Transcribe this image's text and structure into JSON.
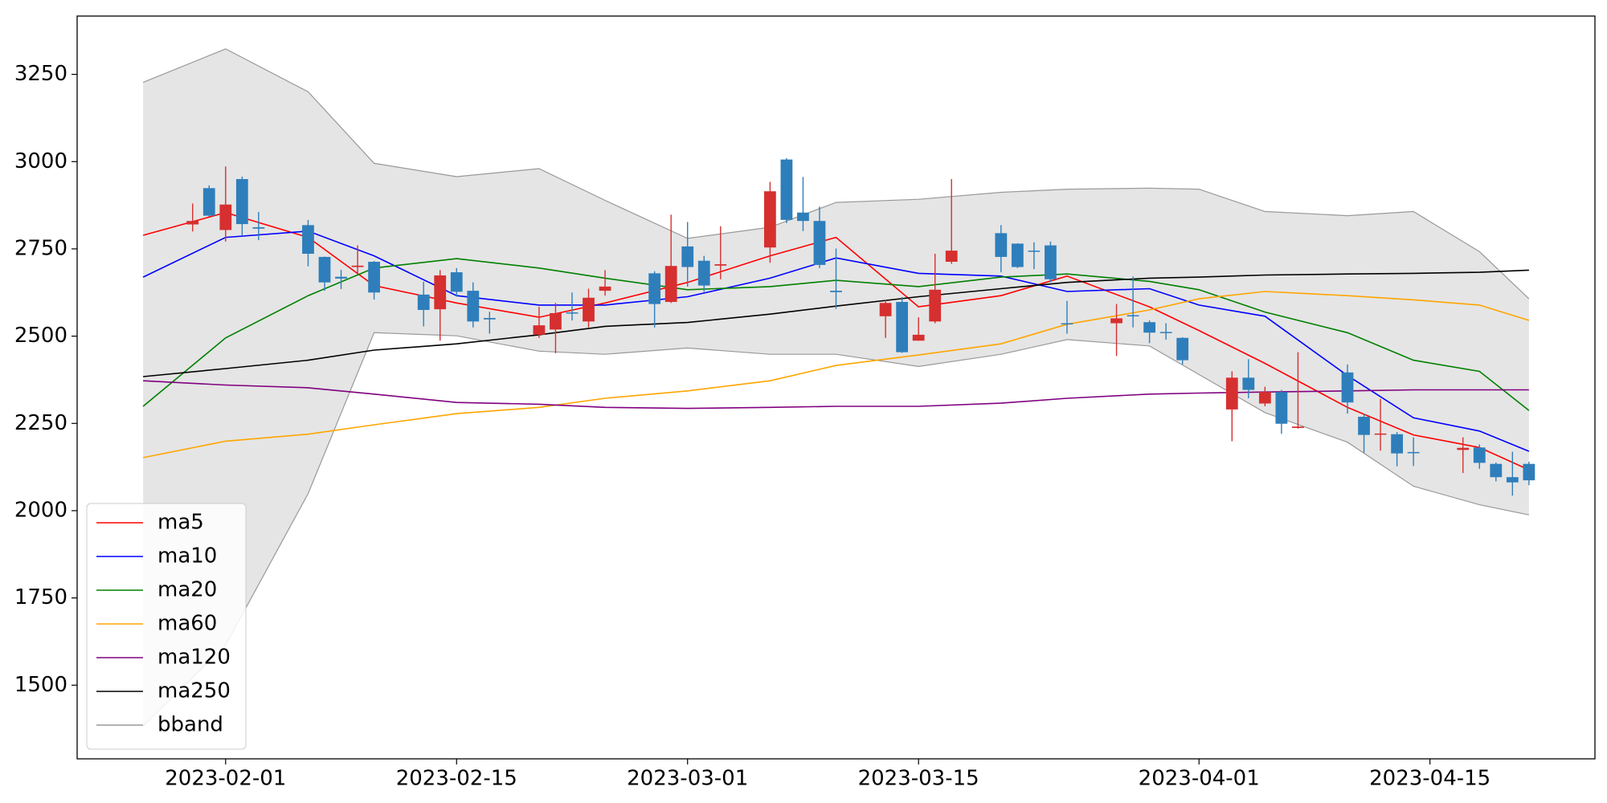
{
  "chart_data": {
    "type": "candlestick",
    "x": [
      "2023-01-30",
      "2023-01-31",
      "2023-02-01",
      "2023-02-02",
      "2023-02-03",
      "2023-02-06",
      "2023-02-07",
      "2023-02-08",
      "2023-02-09",
      "2023-02-10",
      "2023-02-13",
      "2023-02-14",
      "2023-02-15",
      "2023-02-16",
      "2023-02-17",
      "2023-02-20",
      "2023-02-21",
      "2023-02-22",
      "2023-02-23",
      "2023-02-24",
      "2023-02-27",
      "2023-02-28",
      "2023-03-01",
      "2023-03-02",
      "2023-03-03",
      "2023-03-06",
      "2023-03-07",
      "2023-03-08",
      "2023-03-09",
      "2023-03-10",
      "2023-03-13",
      "2023-03-14",
      "2023-03-15",
      "2023-03-16",
      "2023-03-17",
      "2023-03-20",
      "2023-03-21",
      "2023-03-22",
      "2023-03-23",
      "2023-03-24",
      "2023-03-27",
      "2023-03-28",
      "2023-03-29",
      "2023-03-30",
      "2023-03-31",
      "2023-04-03",
      "2023-04-04",
      "2023-04-05",
      "2023-04-06",
      "2023-04-07",
      "2023-04-10",
      "2023-04-11",
      "2023-04-12",
      "2023-04-13",
      "2023-04-14",
      "2023-04-17",
      "2023-04-18",
      "2023-04-19",
      "2023-04-20",
      "2023-04-21"
    ],
    "open": [
      2820,
      2924,
      2804,
      2950,
      2812,
      2818,
      2727,
      2670,
      2698,
      2713,
      2619,
      2577,
      2683,
      2630,
      2552,
      2504,
      2519,
      2568,
      2542,
      2630,
      2680,
      2598,
      2757,
      2716,
      2702,
      2754,
      3006,
      2854,
      2830,
      2630,
      2557,
      2598,
      2487,
      2542,
      2713,
      2795,
      2765,
      2745,
      2760,
      2537,
      2537,
      2560,
      2540,
      2512,
      2495,
      2290,
      2381,
      2307,
      2340,
      2237,
      2396,
      2269,
      2218,
      2219,
      2168,
      2174,
      2181,
      2134,
      2096,
      2134
    ],
    "high": [
      2880,
      2932,
      2986,
      2957,
      2856,
      2833,
      2728,
      2690,
      2760,
      2715,
      2656,
      2689,
      2695,
      2654,
      2570,
      2584,
      2595,
      2625,
      2636,
      2689,
      2686,
      2848,
      2827,
      2730,
      2815,
      2942,
      3010,
      2956,
      2871,
      2751,
      2604,
      2612,
      2554,
      2736,
      2950,
      2818,
      2766,
      2769,
      2771,
      2601,
      2592,
      2671,
      2545,
      2537,
      2497,
      2399,
      2434,
      2355,
      2346,
      2454,
      2419,
      2278,
      2320,
      2225,
      2210,
      2210,
      2190,
      2138,
      2169,
      2140
    ],
    "low": [
      2800,
      2843,
      2771,
      2789,
      2775,
      2700,
      2630,
      2635,
      2677,
      2605,
      2528,
      2487,
      2613,
      2525,
      2507,
      2495,
      2451,
      2545,
      2525,
      2616,
      2525,
      2595,
      2642,
      2627,
      2663,
      2710,
      2824,
      2801,
      2695,
      2578,
      2495,
      2452,
      2487,
      2537,
      2707,
      2683,
      2695,
      2692,
      2654,
      2507,
      2443,
      2525,
      2480,
      2490,
      2419,
      2199,
      2322,
      2299,
      2220,
      2235,
      2278,
      2166,
      2172,
      2127,
      2128,
      2108,
      2120,
      2084,
      2043,
      2073
    ],
    "close": [
      2830,
      2845,
      2877,
      2821,
      2808,
      2736,
      2654,
      2665,
      2702,
      2625,
      2575,
      2674,
      2627,
      2542,
      2548,
      2531,
      2566,
      2565,
      2610,
      2642,
      2592,
      2701,
      2698,
      2645,
      2706,
      2915,
      2833,
      2830,
      2704,
      2626,
      2595,
      2454,
      2504,
      2633,
      2745,
      2727,
      2698,
      2742,
      2663,
      2535,
      2551,
      2557,
      2510,
      2509,
      2431,
      2381,
      2346,
      2340,
      2249,
      2241,
      2310,
      2217,
      2221,
      2164,
      2165,
      2180,
      2137,
      2096,
      2081,
      2087
    ],
    "up_color": "#d62f2f",
    "down_color": "#2e7ebb",
    "overlays": {
      "x": [
        "2023-01-27",
        "2023-02-01",
        "2023-02-06",
        "2023-02-10",
        "2023-02-15",
        "2023-02-20",
        "2023-02-24",
        "2023-03-01",
        "2023-03-06",
        "2023-03-10",
        "2023-03-15",
        "2023-03-20",
        "2023-03-24",
        "2023-03-29",
        "2023-04-01",
        "2023-04-05",
        "2023-04-10",
        "2023-04-14",
        "2023-04-18",
        "2023-04-21"
      ],
      "series": [
        {
          "name": "ma5",
          "color": "#ff0000",
          "values": [
            2789,
            2854,
            2783,
            2645,
            2595,
            2554,
            2595,
            2654,
            2730,
            2783,
            2584,
            2616,
            2672,
            2584,
            2516,
            2422,
            2296,
            2217,
            2181,
            2117
          ]
        },
        {
          "name": "ma10",
          "color": "#0000ff",
          "values": [
            2669,
            2783,
            2801,
            2730,
            2616,
            2589,
            2589,
            2613,
            2666,
            2724,
            2680,
            2672,
            2628,
            2636,
            2589,
            2557,
            2387,
            2266,
            2228,
            2170
          ]
        },
        {
          "name": "ma20",
          "color": "#008000",
          "values": [
            2299,
            2495,
            2616,
            2695,
            2722,
            2695,
            2666,
            2633,
            2642,
            2660,
            2642,
            2669,
            2678,
            2657,
            2633,
            2569,
            2510,
            2431,
            2399,
            2287
          ]
        },
        {
          "name": "ma60",
          "color": "#ffa500",
          "values": [
            2152,
            2199,
            2219,
            2246,
            2278,
            2296,
            2322,
            2343,
            2372,
            2416,
            2446,
            2478,
            2534,
            2575,
            2607,
            2628,
            2616,
            2604,
            2589,
            2545
          ]
        },
        {
          "name": "ma120",
          "color": "#800080",
          "values": [
            2372,
            2360,
            2352,
            2334,
            2310,
            2305,
            2296,
            2293,
            2296,
            2299,
            2299,
            2308,
            2322,
            2334,
            2337,
            2340,
            2343,
            2346,
            2346,
            2346
          ]
        },
        {
          "name": "ma250",
          "color": "#000000",
          "values": [
            2384,
            2407,
            2431,
            2460,
            2478,
            2504,
            2528,
            2539,
            2563,
            2586,
            2613,
            2636,
            2654,
            2666,
            2669,
            2675,
            2678,
            2680,
            2683,
            2689
          ]
        }
      ],
      "band": {
        "name": "bband",
        "color": "#999999",
        "fill": "#e5e5e5",
        "upper": [
          3227,
          3323,
          3200,
          2995,
          2957,
          2980,
          2889,
          2780,
          2812,
          2883,
          2892,
          2912,
          2921,
          2924,
          2921,
          2857,
          2845,
          2857,
          2742,
          2607
        ],
        "lower": [
          1383,
          1615,
          2049,
          2510,
          2501,
          2457,
          2448,
          2466,
          2448,
          2448,
          2413,
          2448,
          2490,
          2472,
          2390,
          2281,
          2196,
          2070,
          2017,
          1988
        ]
      }
    },
    "xlim": [
      "2023-01-23",
      "2023-04-25"
    ],
    "xticks": [
      "2023-02-01",
      "2023-02-15",
      "2023-03-01",
      "2023-03-15",
      "2023-04-01",
      "2023-04-15"
    ],
    "ylim": [
      1289,
      3417
    ],
    "yticks": [
      1500,
      1750,
      2000,
      2250,
      2500,
      2750,
      3000,
      3250
    ],
    "legend": "lower left"
  }
}
